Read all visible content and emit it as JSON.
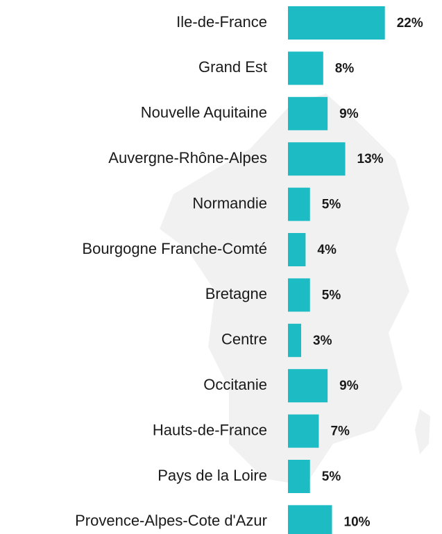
{
  "chart_data": {
    "type": "bar",
    "orientation": "horizontal",
    "color": "#1dbcc4",
    "categories": [
      "Ile-de-France",
      "Grand Est",
      "Nouvelle Aquitaine",
      "Auvergne-Rhône-Alpes",
      "Normandie",
      "Bourgogne Franche-Comté",
      "Bretagne",
      "Centre",
      "Occitanie",
      "Hauts-de-France",
      "Pays de la Loire",
      "Provence-Alpes-Cote d'Azur"
    ],
    "values": [
      22,
      8,
      9,
      13,
      5,
      4,
      5,
      3,
      9,
      7,
      5,
      10
    ],
    "value_labels": [
      "22%",
      "8%",
      "9%",
      "13%",
      "5%",
      "4%",
      "5%",
      "3%",
      "9%",
      "7%",
      "5%",
      "10%"
    ]
  }
}
